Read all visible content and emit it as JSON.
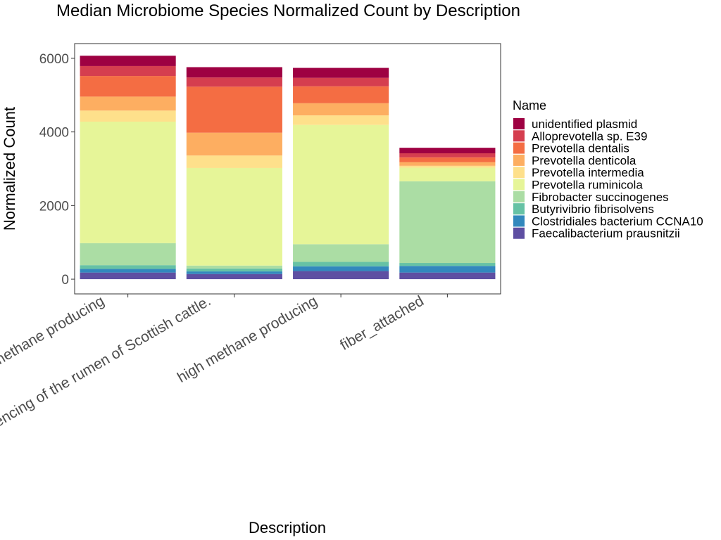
{
  "chart_data": {
    "type": "bar",
    "stacked": true,
    "title": "Median Microbiome Species Normalized Count by Description",
    "xlabel": "Description",
    "ylabel": "Normalized Count",
    "ylim": [
      -400,
      6400
    ],
    "yticks": [
      0,
      2000,
      4000,
      6000
    ],
    "grid": false,
    "legend": {
      "title": "Name",
      "placement": "right"
    },
    "categories": [
      "low methane producing",
      "sequencing of the rumen of Scottish cattle.",
      "high methane producing",
      "fiber_attached"
    ],
    "series": [
      {
        "name": "Faecalibacterium prausnitzii",
        "color": "#5E4FA2",
        "values": [
          180,
          140,
          220,
          180
        ]
      },
      {
        "name": "Clostridiales bacterium CCNA10",
        "color": "#3288BD",
        "values": [
          100,
          70,
          130,
          180
        ]
      },
      {
        "name": "Butyrivibrio fibrisolvens",
        "color": "#66C2A5",
        "values": [
          100,
          80,
          120,
          80
        ]
      },
      {
        "name": "Fibrobacter succinogenes",
        "color": "#ABDDA4",
        "values": [
          600,
          80,
          480,
          2220
        ]
      },
      {
        "name": "Prevotella ruminicola",
        "color": "#E6F598",
        "values": [
          3300,
          2650,
          3240,
          370
        ]
      },
      {
        "name": "Prevotella intermedia",
        "color": "#FEE08B",
        "values": [
          300,
          340,
          260,
          50
        ]
      },
      {
        "name": "Prevotella denticola",
        "color": "#FDAE61",
        "values": [
          380,
          620,
          330,
          100
        ]
      },
      {
        "name": "Prevotella dentalis",
        "color": "#F46D43",
        "values": [
          560,
          1250,
          460,
          130
        ]
      },
      {
        "name": "Alloprevotella sp. E39",
        "color": "#D53E4F",
        "values": [
          270,
          250,
          230,
          110
        ]
      },
      {
        "name": "unidentified plasmid",
        "color": "#9E0142",
        "values": [
          280,
          280,
          270,
          150
        ]
      }
    ]
  }
}
